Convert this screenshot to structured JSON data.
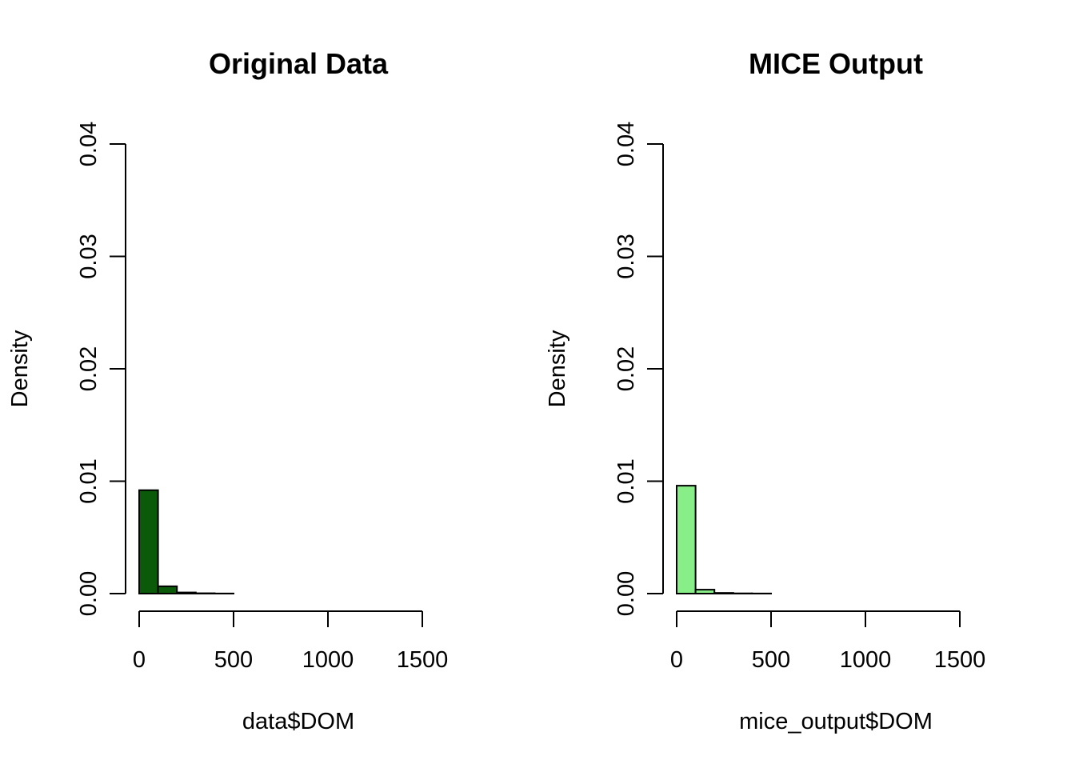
{
  "chart_data": [
    {
      "type": "bar",
      "title": "Original Data",
      "xlabel": "data$DOM",
      "ylabel": "Density",
      "bar_color": "#0a5a0a",
      "bin_width": 100,
      "bins": [
        {
          "x0": 0,
          "x1": 100,
          "density": 0.0092
        },
        {
          "x0": 100,
          "x1": 200,
          "density": 0.00065
        },
        {
          "x0": 200,
          "x1": 300,
          "density": 0.0001
        },
        {
          "x0": 300,
          "x1": 400,
          "density": 3e-05
        },
        {
          "x0": 400,
          "x1": 500,
          "density": 1e-05
        },
        {
          "x0": 500,
          "x1": 600,
          "density": 0
        },
        {
          "x0": 600,
          "x1": 700,
          "density": 0
        },
        {
          "x0": 700,
          "x1": 800,
          "density": 0
        },
        {
          "x0": 800,
          "x1": 900,
          "density": 0
        },
        {
          "x0": 900,
          "x1": 1000,
          "density": 0
        },
        {
          "x0": 1000,
          "x1": 1100,
          "density": 0
        },
        {
          "x0": 1100,
          "x1": 1200,
          "density": 0
        },
        {
          "x0": 1200,
          "x1": 1300,
          "density": 0
        },
        {
          "x0": 1300,
          "x1": 1400,
          "density": 0
        },
        {
          "x0": 1400,
          "x1": 1500,
          "density": 0
        },
        {
          "x0": 1500,
          "x1": 1600,
          "density": 0
        },
        {
          "x0": 1600,
          "x1": 1700,
          "density": 0
        }
      ],
      "xlim": [
        0,
        1700
      ],
      "ylim": [
        0,
        0.04
      ],
      "xticks": [
        "0",
        "500",
        "1000",
        "1500"
      ],
      "xtick_values": [
        0,
        500,
        1000,
        1500
      ],
      "yticks": [
        "0.00",
        "0.01",
        "0.02",
        "0.03",
        "0.04"
      ],
      "ytick_values": [
        0,
        0.01,
        0.02,
        0.03,
        0.04
      ],
      "grid": false
    },
    {
      "type": "bar",
      "title": "MICE Output",
      "xlabel": "mice_output$DOM",
      "ylabel": "Density",
      "bar_color": "#88ee88",
      "bin_width": 100,
      "bins": [
        {
          "x0": 0,
          "x1": 100,
          "density": 0.0096
        },
        {
          "x0": 100,
          "x1": 200,
          "density": 0.00035
        },
        {
          "x0": 200,
          "x1": 300,
          "density": 6e-05
        },
        {
          "x0": 300,
          "x1": 400,
          "density": 2e-05
        },
        {
          "x0": 400,
          "x1": 500,
          "density": 1e-05
        },
        {
          "x0": 500,
          "x1": 600,
          "density": 0
        },
        {
          "x0": 600,
          "x1": 700,
          "density": 0
        },
        {
          "x0": 700,
          "x1": 800,
          "density": 0
        },
        {
          "x0": 800,
          "x1": 900,
          "density": 0
        },
        {
          "x0": 900,
          "x1": 1000,
          "density": 0
        },
        {
          "x0": 1000,
          "x1": 1100,
          "density": 0
        },
        {
          "x0": 1100,
          "x1": 1200,
          "density": 0
        },
        {
          "x0": 1200,
          "x1": 1300,
          "density": 0
        },
        {
          "x0": 1300,
          "x1": 1400,
          "density": 0
        },
        {
          "x0": 1400,
          "x1": 1500,
          "density": 0
        },
        {
          "x0": 1500,
          "x1": 1600,
          "density": 0
        },
        {
          "x0": 1600,
          "x1": 1700,
          "density": 0
        }
      ],
      "xlim": [
        0,
        1700
      ],
      "ylim": [
        0,
        0.04
      ],
      "xticks": [
        "0",
        "500",
        "1000",
        "1500"
      ],
      "xtick_values": [
        0,
        500,
        1000,
        1500
      ],
      "yticks": [
        "0.00",
        "0.01",
        "0.02",
        "0.03",
        "0.04"
      ],
      "ytick_values": [
        0,
        0.01,
        0.02,
        0.03,
        0.04
      ],
      "grid": false
    }
  ]
}
